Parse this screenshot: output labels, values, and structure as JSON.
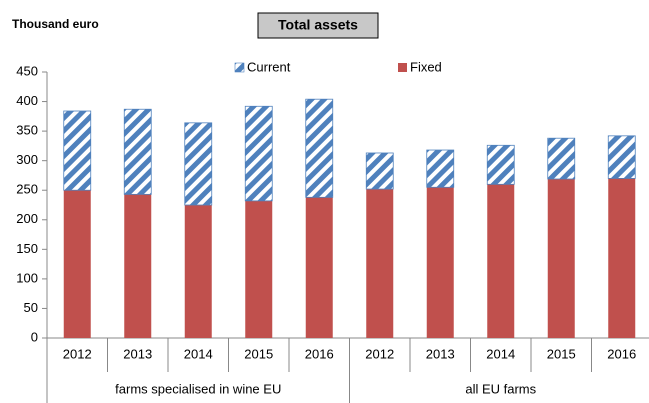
{
  "chart_data": {
    "type": "bar",
    "stacked": true,
    "title": "Total assets",
    "y_label": "Thousand euro",
    "categories": [
      "2012",
      "2013",
      "2014",
      "2015",
      "2016",
      "2012",
      "2013",
      "2014",
      "2015",
      "2016"
    ],
    "groups": [
      "farms specialised in wine EU",
      "all EU farms"
    ],
    "series": [
      {
        "name": "Fixed",
        "color": "#c0504d",
        "values": [
          250,
          243,
          225,
          232,
          238,
          252,
          255,
          260,
          269,
          270
        ]
      },
      {
        "name": "Current",
        "color": "#4f81bd",
        "pattern": "diagonal-stripes",
        "values": [
          134,
          144,
          139,
          160,
          166,
          61,
          63,
          66,
          69,
          72
        ]
      }
    ],
    "legend_order": [
      1,
      0
    ],
    "ylim": [
      0,
      450
    ],
    "yticks": [
      0,
      50,
      100,
      150,
      200,
      250,
      300,
      350,
      400,
      450
    ],
    "grid": false
  }
}
